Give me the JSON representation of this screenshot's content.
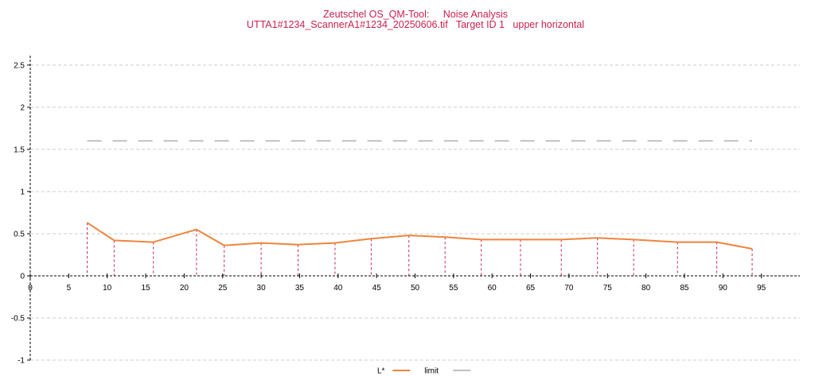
{
  "title": {
    "line1": "Zeutschel OS_QM-Tool:     Noise Analysis",
    "line2": "UTTA1#1234_ScannerA1#1234_20250606.tif   Target ID 1   upper horizontal"
  },
  "colors": {
    "title": "#c8204e",
    "series": "#f0843c",
    "limit": "#c0c0c0",
    "drop_lines": "#c8204e",
    "grid": "#cccccc",
    "axis": "#000000"
  },
  "chart_data": {
    "type": "line",
    "title": "Zeutschel OS_QM-Tool:     Noise Analysis\nUTTA1#1234_ScannerA1#1234_20250606.tif   Target ID 1   upper horizontal",
    "xlabel": "",
    "ylabel": "",
    "xlim": [
      0,
      100
    ],
    "ylim": [
      -1,
      2.65
    ],
    "x_ticks": [
      0,
      5,
      10,
      15,
      20,
      25,
      30,
      35,
      40,
      45,
      50,
      55,
      60,
      65,
      70,
      75,
      80,
      85,
      90,
      95
    ],
    "x_tick_labels": [
      "0",
      "5",
      "10",
      "15",
      "20",
      "25",
      "30",
      "35",
      "40",
      "45",
      "50",
      "55",
      "60",
      "65",
      "70",
      "75",
      "80",
      "85",
      "90",
      "95"
    ],
    "y_ticks": [
      -1,
      -0.5,
      0,
      0.5,
      1,
      1.5,
      2,
      2.5
    ],
    "y_tick_labels": [
      "-1",
      "-0.5",
      "0",
      "0.5",
      "1",
      "1.5",
      "2",
      "2.5"
    ],
    "grid": "horizontal dashed",
    "legend_position": "bottom-center",
    "series": [
      {
        "name": "L*",
        "style": "solid",
        "drop_lines": true,
        "x": [
          7.4,
          10.9,
          16.0,
          21.6,
          25.2,
          30.0,
          34.8,
          39.6,
          44.3,
          49.2,
          53.9,
          58.6,
          63.7,
          69.0,
          73.7,
          78.4,
          84.1,
          89.2,
          93.8
        ],
        "y": [
          0.63,
          0.42,
          0.4,
          0.55,
          0.36,
          0.39,
          0.37,
          0.39,
          0.44,
          0.48,
          0.46,
          0.43,
          0.43,
          0.43,
          0.45,
          0.43,
          0.4,
          0.4,
          0.32
        ]
      },
      {
        "name": "limit",
        "style": "dashed",
        "x": [
          7.4,
          93.8
        ],
        "y": [
          1.6,
          1.6
        ]
      }
    ]
  }
}
